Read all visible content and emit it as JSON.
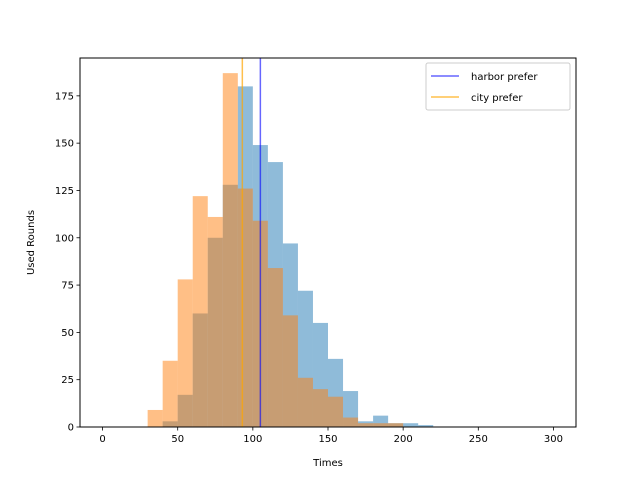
{
  "chart_data": {
    "type": "bar",
    "subtype": "histogram",
    "title": "",
    "xlabel": "Times",
    "ylabel": "Used Rounds",
    "xlim": [
      -15,
      315
    ],
    "ylim": [
      0,
      195
    ],
    "xticks": [
      0,
      50,
      100,
      150,
      200,
      250,
      300
    ],
    "yticks": [
      0,
      25,
      50,
      75,
      100,
      125,
      150,
      175
    ],
    "grid": false,
    "legend_position": "top-right",
    "bin_edges": [
      30,
      40,
      50,
      60,
      70,
      80,
      90,
      100,
      110,
      120,
      130,
      140,
      150,
      160,
      170,
      180,
      190,
      200,
      210,
      220
    ],
    "series": [
      {
        "name": "harbor prefer",
        "kind": "histogram",
        "color": "#1f77b4",
        "alpha": 0.5,
        "values": [
          0,
          3,
          17,
          60,
          100,
          128,
          180,
          149,
          140,
          97,
          72,
          55,
          36,
          19,
          3,
          6,
          2,
          2,
          1
        ]
      },
      {
        "name": "city prefer",
        "kind": "histogram",
        "color": "#ff7f0e",
        "alpha": 0.5,
        "values": [
          9,
          35,
          78,
          122,
          111,
          187,
          126,
          109,
          84,
          59,
          26,
          20,
          16,
          5,
          2,
          2,
          2,
          0,
          0
        ]
      }
    ],
    "vlines": [
      {
        "name": "harbor prefer",
        "x": 105,
        "color": "#0000ff",
        "alpha": 0.6
      },
      {
        "name": "city prefer",
        "x": 93,
        "color": "#ffa500",
        "alpha": 0.7
      }
    ]
  }
}
